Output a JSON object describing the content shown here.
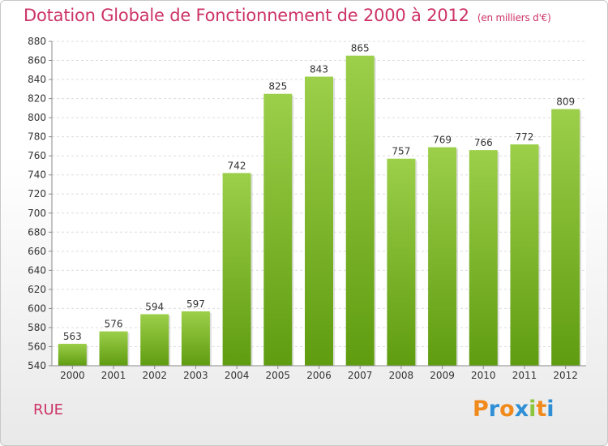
{
  "chart_data": {
    "type": "bar",
    "title": "Dotation Globale de Fonctionnement de 2000 à 2012",
    "unit_note": "(en milliers d'€)",
    "categories": [
      "2000",
      "2001",
      "2002",
      "2003",
      "2004",
      "2005",
      "2006",
      "2007",
      "2008",
      "2009",
      "2010",
      "2011",
      "2012"
    ],
    "values": [
      563,
      576,
      594,
      597,
      742,
      825,
      843,
      865,
      757,
      769,
      766,
      772,
      809
    ],
    "ylim": [
      540,
      880
    ],
    "yticks": [
      540,
      560,
      580,
      600,
      620,
      640,
      660,
      680,
      700,
      720,
      740,
      760,
      780,
      800,
      820,
      840,
      860,
      880
    ],
    "grid": true,
    "bar_color_top": "#9ccf4a",
    "bar_color_bottom": "#5f9c10"
  },
  "location": "RUE",
  "logo": {
    "letters": [
      "P",
      "r",
      "o",
      "x",
      "i",
      "t",
      "i"
    ],
    "colors": [
      "#f08a1c",
      "#2e8fd6",
      "#f08a1c",
      "#2e8fd6",
      "#8cc63f",
      "#f08a1c",
      "#2e8fd6"
    ]
  }
}
